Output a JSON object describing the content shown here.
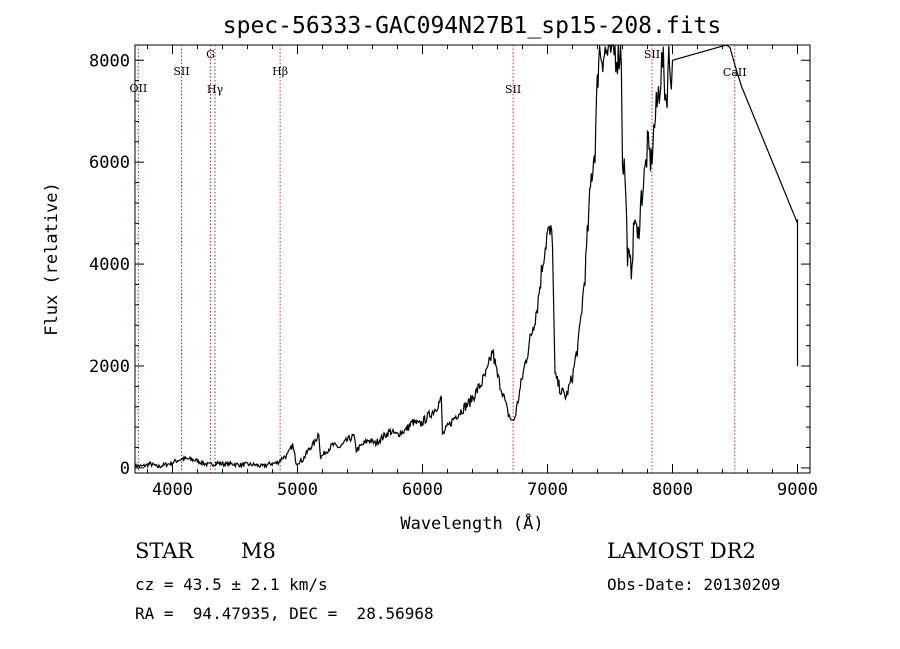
{
  "chart_data": {
    "type": "line",
    "title": "spec-56333-GAC094N27B1_sp15-208.fits",
    "xlabel": "Wavelength (Å)",
    "ylabel": "Flux (relative)",
    "xlim": [
      3700,
      9100
    ],
    "ylim": [
      -100,
      8300
    ],
    "x_ticks": [
      4000,
      5000,
      6000,
      7000,
      8000,
      9000
    ],
    "y_ticks": [
      0,
      2000,
      4000,
      6000,
      8000
    ],
    "grid": false,
    "series": [
      {
        "name": "",
        "x": [
          3700,
          3760,
          3820,
          3880,
          3940,
          4000,
          4040,
          4080,
          4140,
          4200,
          4260,
          4300,
          4360,
          4420,
          4480,
          4540,
          4600,
          4660,
          4720,
          4780,
          4840,
          4880,
          4920,
          4960,
          4990,
          5040,
          5100,
          5140,
          5170,
          5185,
          5220,
          5280,
          5340,
          5400,
          5450,
          5470,
          5520,
          5570,
          5620,
          5680,
          5740,
          5790,
          5830,
          5870,
          5920,
          5980,
          6040,
          6100,
          6150,
          6160,
          6200,
          6260,
          6320,
          6380,
          6420,
          6470,
          6520,
          6560,
          6600,
          6640,
          6680,
          6720,
          6740,
          6800,
          6860,
          6920,
          6970,
          7000,
          7040,
          7050,
          7060,
          7110,
          7150,
          7200,
          7250,
          7300,
          7350,
          7380,
          7410,
          7430,
          7480,
          7520,
          7560,
          7590,
          7600,
          7620,
          7640,
          7670,
          7700,
          7720,
          7750,
          7780,
          7800,
          7830,
          7850,
          7870,
          7900,
          7920,
          7950,
          7970,
          7990,
          8000,
          8430,
          8460,
          8500,
          8550,
          9000,
          9000
        ],
        "values": [
          50,
          30,
          80,
          20,
          60,
          100,
          150,
          180,
          170,
          140,
          80,
          60,
          100,
          70,
          80,
          60,
          70,
          60,
          30,
          80,
          100,
          200,
          250,
          450,
          100,
          150,
          400,
          500,
          700,
          200,
          300,
          450,
          400,
          550,
          620,
          350,
          450,
          550,
          480,
          600,
          720,
          650,
          700,
          750,
          900,
          850,
          1000,
          1150,
          1350,
          650,
          800,
          1000,
          1150,
          1300,
          1450,
          1650,
          1900,
          2300,
          1800,
          1500,
          1100,
          900,
          1000,
          1800,
          2500,
          3200,
          4200,
          4600,
          4550,
          3000,
          1800,
          1500,
          1400,
          1800,
          2500,
          3800,
          5700,
          6300,
          8200,
          8150,
          8150,
          8200,
          8150,
          8200,
          6100,
          5800,
          4200,
          3900,
          5000,
          4400,
          5300,
          5800,
          6300,
          6000,
          6600,
          7000,
          7600,
          8000,
          7200,
          8000,
          7800,
          8000,
          8300,
          8250,
          7900,
          7500,
          4800,
          2000
        ]
      }
    ],
    "lines": [
      {
        "label": "OII",
        "x": 3727
      },
      {
        "label": "SII",
        "x": 4072
      },
      {
        "label": "G",
        "x": 4304
      },
      {
        "label": "Hγ",
        "x": 4340
      },
      {
        "label": "Hβ",
        "x": 4861
      },
      {
        "label": "SII",
        "x": 6725
      },
      {
        "label": "SII",
        "x": 7836
      },
      {
        "label": "CaII",
        "x": 8498
      }
    ]
  },
  "info": {
    "obj_class": "STAR",
    "subclass": "M8",
    "survey": "LAMOST DR2",
    "cz": "cz = 43.5 ± 2.1 km/s",
    "obs_date": "Obs-Date: 20130209",
    "coords": "RA =  94.47935, DEC =  28.56968"
  },
  "colors": {
    "spectrum": "#000000",
    "line_marker": "#b03030"
  }
}
